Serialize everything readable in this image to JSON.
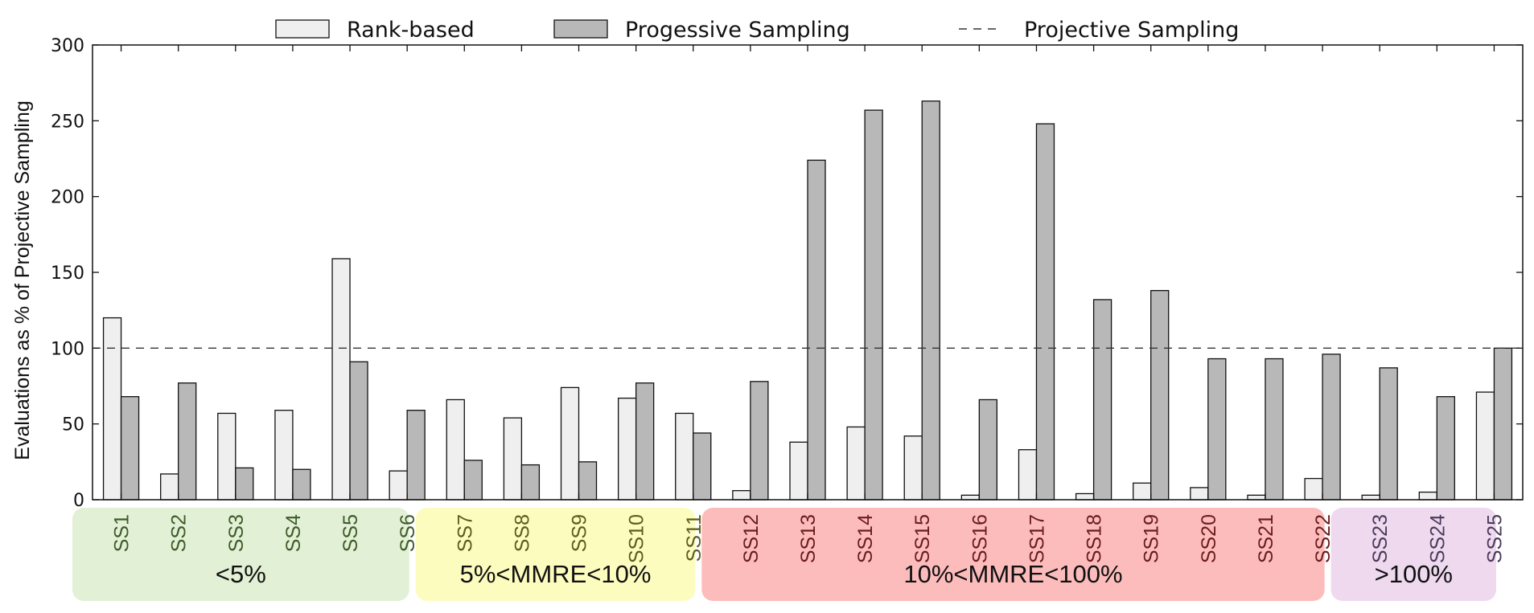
{
  "chart_data": {
    "type": "bar",
    "ylabel": "Evaluations as % of Projective Sampling",
    "ylim": [
      0,
      300
    ],
    "yticks": [
      0,
      50,
      100,
      150,
      200,
      250,
      300
    ],
    "legend_position": "top",
    "grid": false,
    "categories": [
      "SS1",
      "SS2",
      "SS3",
      "SS4",
      "SS5",
      "SS6",
      "SS7",
      "SS8",
      "SS9",
      "SS10",
      "SS11",
      "SS12",
      "SS13",
      "SS14",
      "SS15",
      "SS16",
      "SS17",
      "SS18",
      "SS19",
      "SS20",
      "SS21",
      "SS22",
      "SS23",
      "SS24",
      "SS25"
    ],
    "series": [
      {
        "name": "Rank-based",
        "color": "#efefef",
        "values": [
          120,
          17,
          57,
          59,
          159,
          19,
          66,
          54,
          74,
          67,
          57,
          6,
          38,
          48,
          42,
          3,
          33,
          4,
          11,
          8,
          3,
          14,
          3,
          5,
          71
        ]
      },
      {
        "name": "Progessive Sampling",
        "color": "#b8b8b8",
        "values": [
          68,
          77,
          21,
          20,
          91,
          59,
          26,
          23,
          25,
          77,
          44,
          78,
          224,
          257,
          263,
          66,
          248,
          132,
          138,
          93,
          93,
          96,
          87,
          68,
          100
        ]
      }
    ],
    "reference_line": {
      "name": "Projective Sampling",
      "value": 100,
      "style": "dashed"
    },
    "groups": [
      {
        "label": "<5%",
        "categories": [
          "SS1",
          "SS2",
          "SS3",
          "SS4",
          "SS5",
          "SS6"
        ],
        "bg": "#e2f0d5",
        "text": "#3e5a2a"
      },
      {
        "label": "5%<MMRE<10%",
        "categories": [
          "SS7",
          "SS8",
          "SS9",
          "SS10",
          "SS11"
        ],
        "bg": "#fdfcbf",
        "text": "#5c5c20"
      },
      {
        "label": "10%<MMRE<100%",
        "categories": [
          "SS12",
          "SS13",
          "SS14",
          "SS15",
          "SS16",
          "SS17",
          "SS18",
          "SS19",
          "SS20",
          "SS21",
          "SS22"
        ],
        "bg": "#fdbcbc",
        "text": "#6a1c1c"
      },
      {
        "label": ">100%",
        "categories": [
          "SS23",
          "SS24",
          "SS25"
        ],
        "bg": "#eed9ee",
        "text": "#4a3a5a"
      }
    ]
  }
}
